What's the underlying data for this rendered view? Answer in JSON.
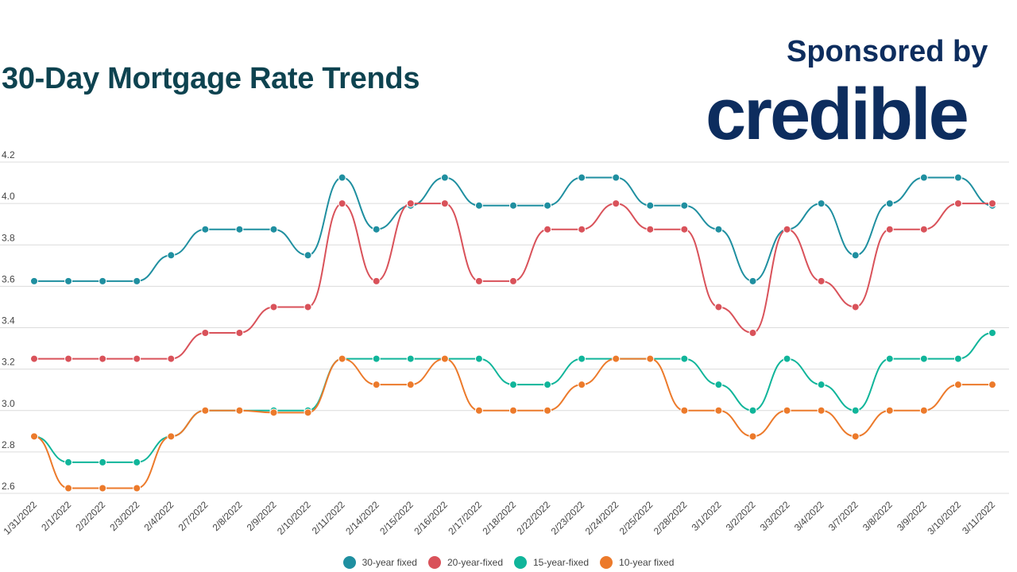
{
  "header": {
    "title": "30-Day Mortgage Rate Trends",
    "sponsor_text": "Sponsored by",
    "brand": "credible"
  },
  "chart_data": {
    "type": "line",
    "title": "30-Day Mortgage Rate Trends",
    "xlabel": "",
    "ylabel": "",
    "ylim": [
      2.6,
      4.2
    ],
    "yticks": [
      "2.6",
      "2.8",
      "3.0",
      "3.2",
      "3.4",
      "3.6",
      "3.8",
      "4.0",
      "4.2"
    ],
    "grid": true,
    "legend_position": "bottom",
    "categories": [
      "1/31/2022",
      "2/1/2022",
      "2/2/2022",
      "2/3/2022",
      "2/4/2022",
      "2/7/2022",
      "2/8/2022",
      "2/9/2022",
      "2/10/2022",
      "2/11/2022",
      "2/14/2022",
      "2/15/2022",
      "2/16/2022",
      "2/17/2022",
      "2/18/2022",
      "2/22/2022",
      "2/23/2022",
      "2/24/2022",
      "2/25/2022",
      "2/28/2022",
      "3/1/2022",
      "3/2/2022",
      "3/3/2022",
      "3/4/2022",
      "3/7/2022",
      "3/8/2022",
      "3/9/2022",
      "3/10/2022",
      "3/11/2022"
    ],
    "series": [
      {
        "name": "30-year fixed",
        "color": "#1f8fa0",
        "values": [
          3.625,
          3.625,
          3.625,
          3.625,
          3.75,
          3.875,
          3.875,
          3.875,
          3.75,
          4.125,
          3.875,
          3.99,
          4.125,
          3.99,
          3.99,
          3.99,
          4.125,
          4.125,
          3.99,
          3.99,
          3.875,
          3.625,
          3.875,
          4.0,
          3.75,
          4.0,
          4.125,
          4.125,
          3.99
        ]
      },
      {
        "name": "20-year-fixed",
        "color": "#d9525a",
        "values": [
          3.25,
          3.25,
          3.25,
          3.25,
          3.25,
          3.375,
          3.375,
          3.5,
          3.5,
          4.0,
          3.625,
          4.0,
          4.0,
          3.625,
          3.625,
          3.875,
          3.875,
          4.0,
          3.875,
          3.875,
          3.5,
          3.375,
          3.875,
          3.625,
          3.5,
          3.875,
          3.875,
          4.0,
          4.0
        ]
      },
      {
        "name": "15-year-fixed",
        "color": "#10b59a",
        "values": [
          2.875,
          2.75,
          2.75,
          2.75,
          2.875,
          3.0,
          3.0,
          3.0,
          3.0,
          3.25,
          3.25,
          3.25,
          3.25,
          3.25,
          3.125,
          3.125,
          3.25,
          3.25,
          3.25,
          3.25,
          3.125,
          3.0,
          3.25,
          3.125,
          3.0,
          3.25,
          3.25,
          3.25,
          3.375
        ]
      },
      {
        "name": "10-year fixed",
        "color": "#ec7a2b",
        "values": [
          2.875,
          2.625,
          2.625,
          2.625,
          2.875,
          3.0,
          3.0,
          2.99,
          2.99,
          3.25,
          3.125,
          3.125,
          3.25,
          3.0,
          3.0,
          3.0,
          3.125,
          3.25,
          3.25,
          3.0,
          3.0,
          2.875,
          3.0,
          3.0,
          2.875,
          3.0,
          3.0,
          3.125,
          3.125
        ]
      }
    ]
  }
}
